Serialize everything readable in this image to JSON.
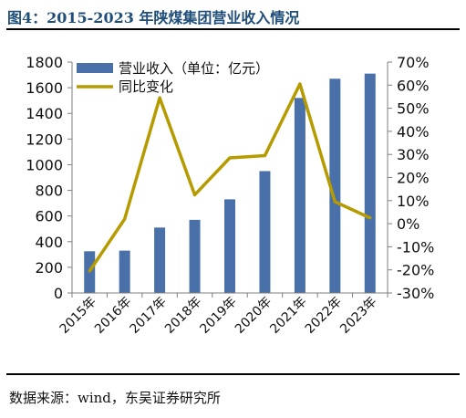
{
  "figure": {
    "title": "图4：2015-2023 年陕煤集团营业收入情况",
    "source": "数据来源：wind，东吴证券研究所"
  },
  "chart_data": {
    "type": "bar",
    "categories": [
      "2015年",
      "2016年",
      "2017年",
      "2018年",
      "2019年",
      "2020年",
      "2021年",
      "2022年",
      "2023年"
    ],
    "series": [
      {
        "name": "营业收入（单位：亿元）",
        "type": "bar",
        "axis": "left",
        "color": "#4a70aa",
        "values": [
          325,
          330,
          510,
          570,
          730,
          950,
          1520,
          1670,
          1710
        ]
      },
      {
        "name": "同比变化",
        "type": "line",
        "axis": "right",
        "color": "#b59b00",
        "values": [
          -20.5,
          2.0,
          54.5,
          12.5,
          28.5,
          29.5,
          60.5,
          9.5,
          2.5
        ]
      }
    ],
    "ylim": [
      0,
      1800
    ],
    "yticks": [
      0,
      200,
      400,
      600,
      800,
      1000,
      1200,
      1400,
      1600,
      1800
    ],
    "y2lim": [
      -30,
      70
    ],
    "y2ticks": [
      "-30%",
      "-20%",
      "-10%",
      "0%",
      "10%",
      "20%",
      "30%",
      "40%",
      "50%",
      "60%",
      "70%"
    ],
    "legend": "top-left",
    "grid": false
  }
}
